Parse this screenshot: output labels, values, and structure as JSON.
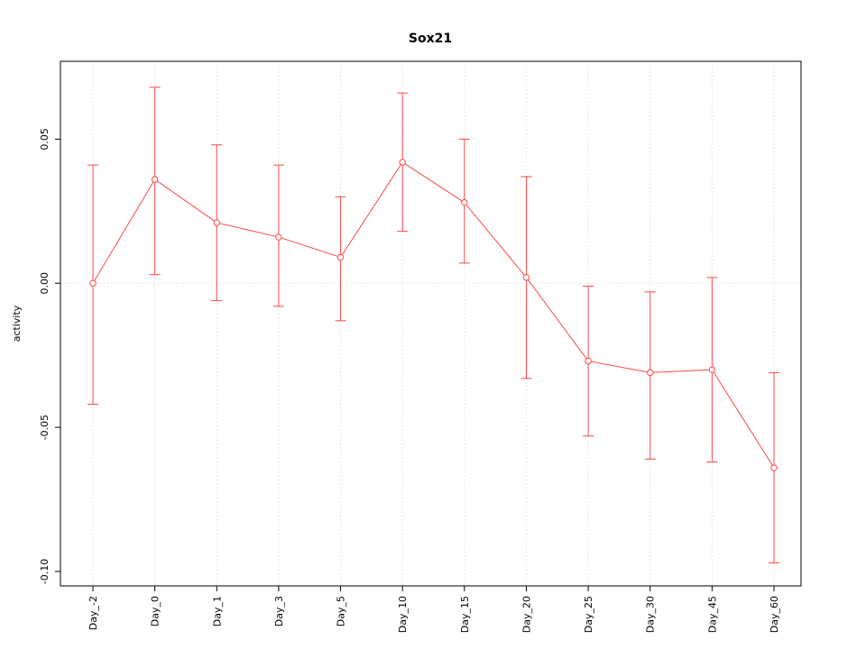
{
  "chart_data": {
    "type": "line",
    "title": "Sox21",
    "xlabel": "",
    "ylabel": "activity",
    "categories": [
      "Day_-2",
      "Day_0",
      "Day_1",
      "Day_3",
      "Day_5",
      "Day_10",
      "Day_15",
      "Day_20",
      "Day_25",
      "Day_30",
      "Day_45",
      "Day_60"
    ],
    "series": [
      {
        "name": "activity",
        "values": [
          0.0,
          0.036,
          0.021,
          0.016,
          0.009,
          0.042,
          0.028,
          0.002,
          -0.027,
          -0.031,
          -0.03,
          -0.064
        ],
        "error_upper": [
          0.041,
          0.068,
          0.048,
          0.041,
          0.03,
          0.066,
          0.05,
          0.037,
          -0.001,
          -0.003,
          0.002,
          -0.031
        ],
        "error_lower": [
          -0.042,
          0.003,
          -0.006,
          -0.008,
          -0.013,
          0.018,
          0.007,
          -0.033,
          -0.053,
          -0.061,
          -0.062,
          -0.097
        ]
      }
    ],
    "ylim": [
      -0.105,
      0.077
    ],
    "yticks": [
      0.05,
      0.0,
      -0.05,
      -0.1
    ],
    "ytick_labels": [
      "0.05",
      "0.00",
      "-0.05",
      "-0.10"
    ],
    "grid": true,
    "legend_position": "none",
    "marker": "open-circle",
    "line_color": "#ff4747",
    "grid_color": "#d4d4d4",
    "axis_color": "#000000",
    "background_color": "#ffffff"
  }
}
